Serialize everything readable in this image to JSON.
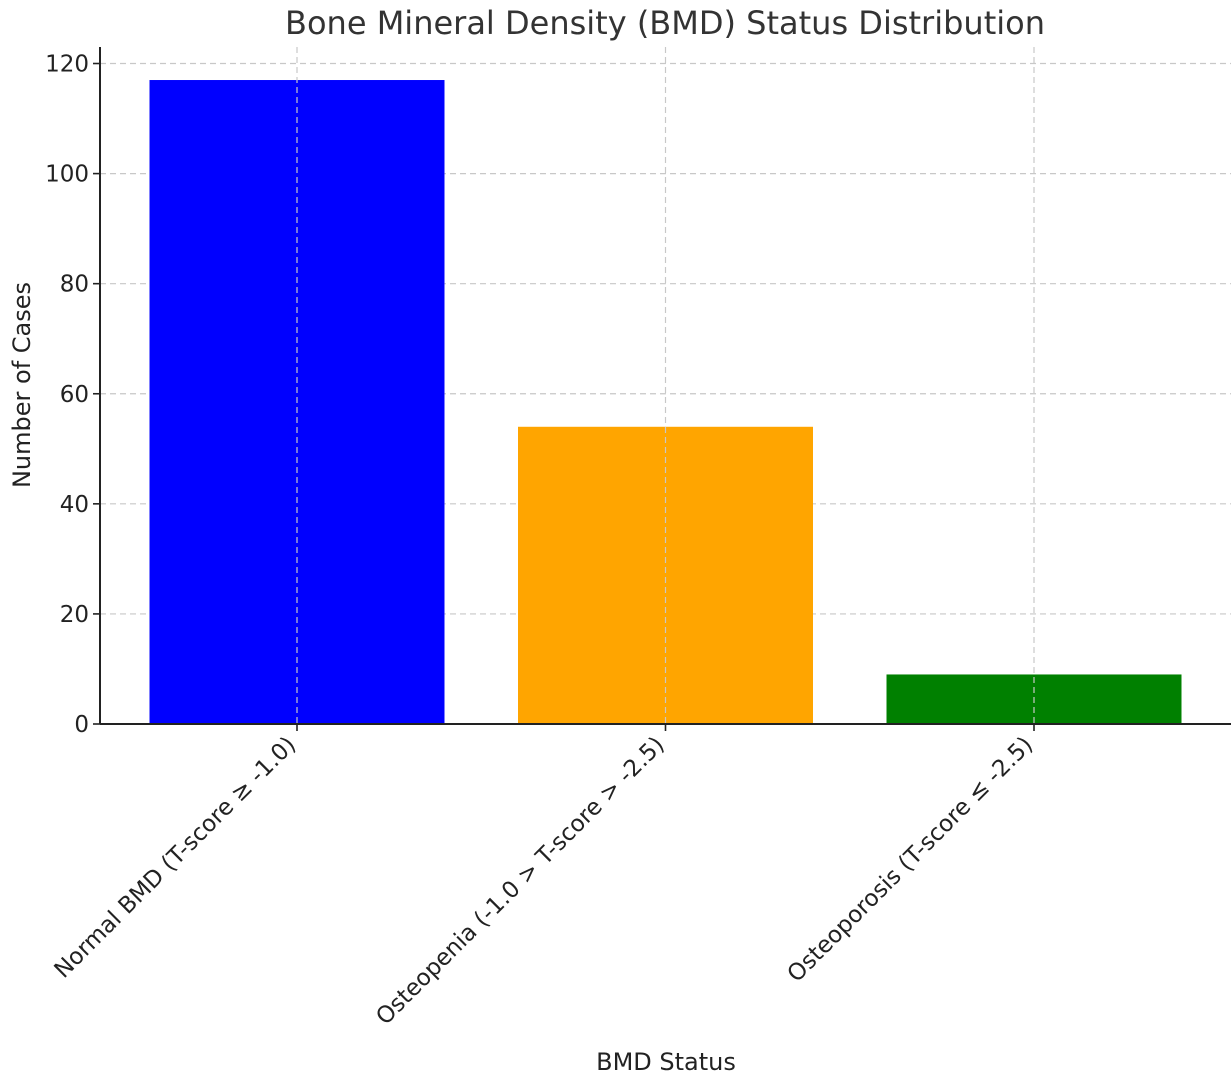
{
  "chart_data": {
    "type": "bar",
    "title": "Bone Mineral Density (BMD) Status Distribution",
    "xlabel": "BMD Status",
    "ylabel": "Number of Cases",
    "categories": [
      "Normal BMD (T-score ≥ -1.0)",
      "Osteopenia (-1.0 > T-score > -2.5)",
      "Osteoporosis (T-score ≤ -2.5)"
    ],
    "values": [
      117,
      54,
      9
    ],
    "colors": [
      "#0000ff",
      "#ffa500",
      "#008000"
    ],
    "ylim": [
      0,
      123
    ],
    "yticks": [
      0,
      20,
      40,
      60,
      80,
      100,
      120
    ],
    "grid": true,
    "x_tick_rotation_deg": 45
  }
}
